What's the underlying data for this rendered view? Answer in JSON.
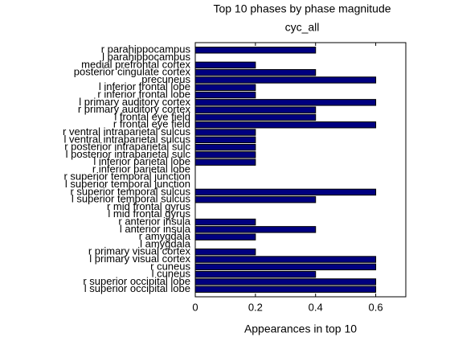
{
  "chart_data": {
    "type": "barh",
    "title": "Top 10 phases by phase magnitude",
    "subtitle": "cyc_all",
    "xlabel": "Appearances in top 10",
    "categories": [
      "r parahippocampus",
      "l parahippocampus",
      "medial prefrontal cortex",
      "posterior cingulate cortex",
      "precuneus",
      "l inferior frontal lobe",
      "r inferior frontal lobe",
      "l primary auditory cortex",
      "r primary auditory cortex",
      "l frontal eye field",
      "r frontal eye field",
      "r ventral intraparietal sulcus",
      "l ventral intraparietal sulcus",
      "r posterior intraparietal sulc",
      "l posterior intraparietal sulc",
      "l inferior parietal lobe",
      "r inferior parietal lobe",
      "r superior temporal junction",
      "l superior temporal junction",
      "r superior temporal sulcus",
      "l superior temporal sulcus",
      "r mid frontal gyrus",
      "l mid frontal gyrus",
      "r anterior insula",
      "l anterior insula",
      "r amygdala",
      "l amygdala",
      "r primary visual cortex",
      "l primary visual cortex",
      "r cuneus",
      "l cuneus",
      "r superior occipital lobe",
      "l superior occipital lobe"
    ],
    "values": [
      0.4,
      0,
      0.2,
      0.4,
      0.6,
      0.2,
      0.2,
      0.6,
      0.4,
      0.4,
      0.6,
      0.2,
      0.2,
      0.2,
      0.2,
      0.2,
      0,
      0,
      0,
      0.6,
      0.4,
      0,
      0,
      0.2,
      0.4,
      0.2,
      0,
      0.2,
      0.6,
      0.6,
      0.4,
      0.6,
      0.6
    ],
    "color": "#000080",
    "xlim": [
      0,
      0.7
    ],
    "xticks": [
      0,
      0.2,
      0.4,
      0.6
    ]
  }
}
